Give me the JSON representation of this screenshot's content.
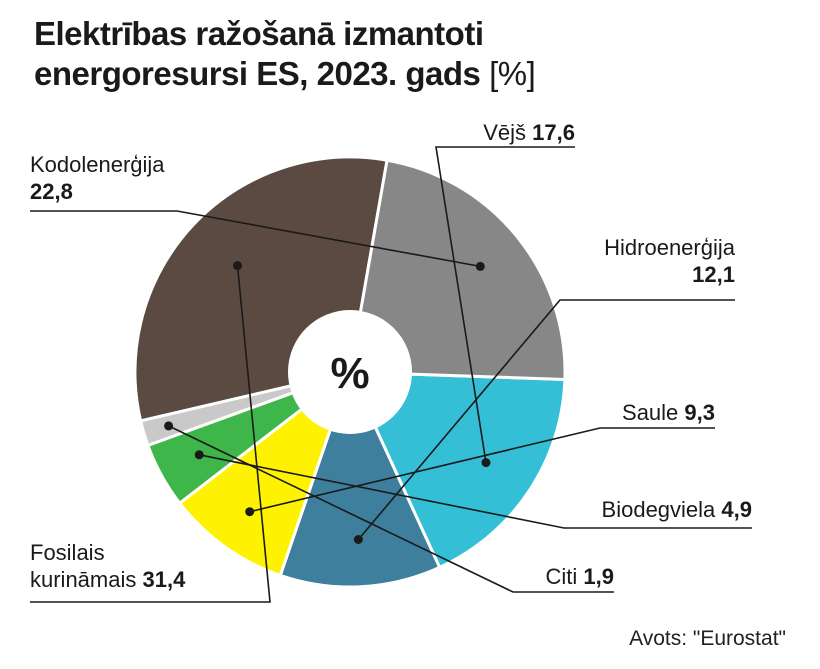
{
  "title": {
    "line1": "Elektrības ražošanā izmantoti",
    "line2": "energoresursi ES, 2023. gads",
    "unit": "[%]"
  },
  "center_label": "%",
  "source": "Avots: \"Eurostat\"",
  "chart_data": {
    "type": "pie",
    "title": "Elektrības ražošanā izmantoti energoresursi ES, 2023. gads [%]",
    "unit": "%",
    "slices": [
      {
        "name": "Vējš",
        "label_lines": [
          "Vējš"
        ],
        "value": 17.6,
        "display": "17,6",
        "color": "#35bfd7"
      },
      {
        "name": "Hidroenerģija",
        "label_lines": [
          "Hidroenerģija"
        ],
        "value": 12.1,
        "display": "12,1",
        "color": "#3d7f9c"
      },
      {
        "name": "Saule",
        "label_lines": [
          "Saule"
        ],
        "value": 9.3,
        "display": "9,3",
        "color": "#fff200"
      },
      {
        "name": "Biodegviela",
        "label_lines": [
          "Biodegviela"
        ],
        "value": 4.9,
        "display": "4,9",
        "color": "#3fb64a"
      },
      {
        "name": "Citi",
        "label_lines": [
          "Citi"
        ],
        "value": 1.9,
        "display": "1,9",
        "color": "#c9c9c9"
      },
      {
        "name": "Fosilais kurināmais",
        "label_lines": [
          "Fosilais",
          "kurināmais"
        ],
        "value": 31.4,
        "display": "31,4",
        "color": "#5a4a42"
      },
      {
        "name": "Kodolenerģija",
        "label_lines": [
          "Kodolenerģija"
        ],
        "value": 22.8,
        "display": "22,8",
        "color": "#878787"
      }
    ]
  }
}
